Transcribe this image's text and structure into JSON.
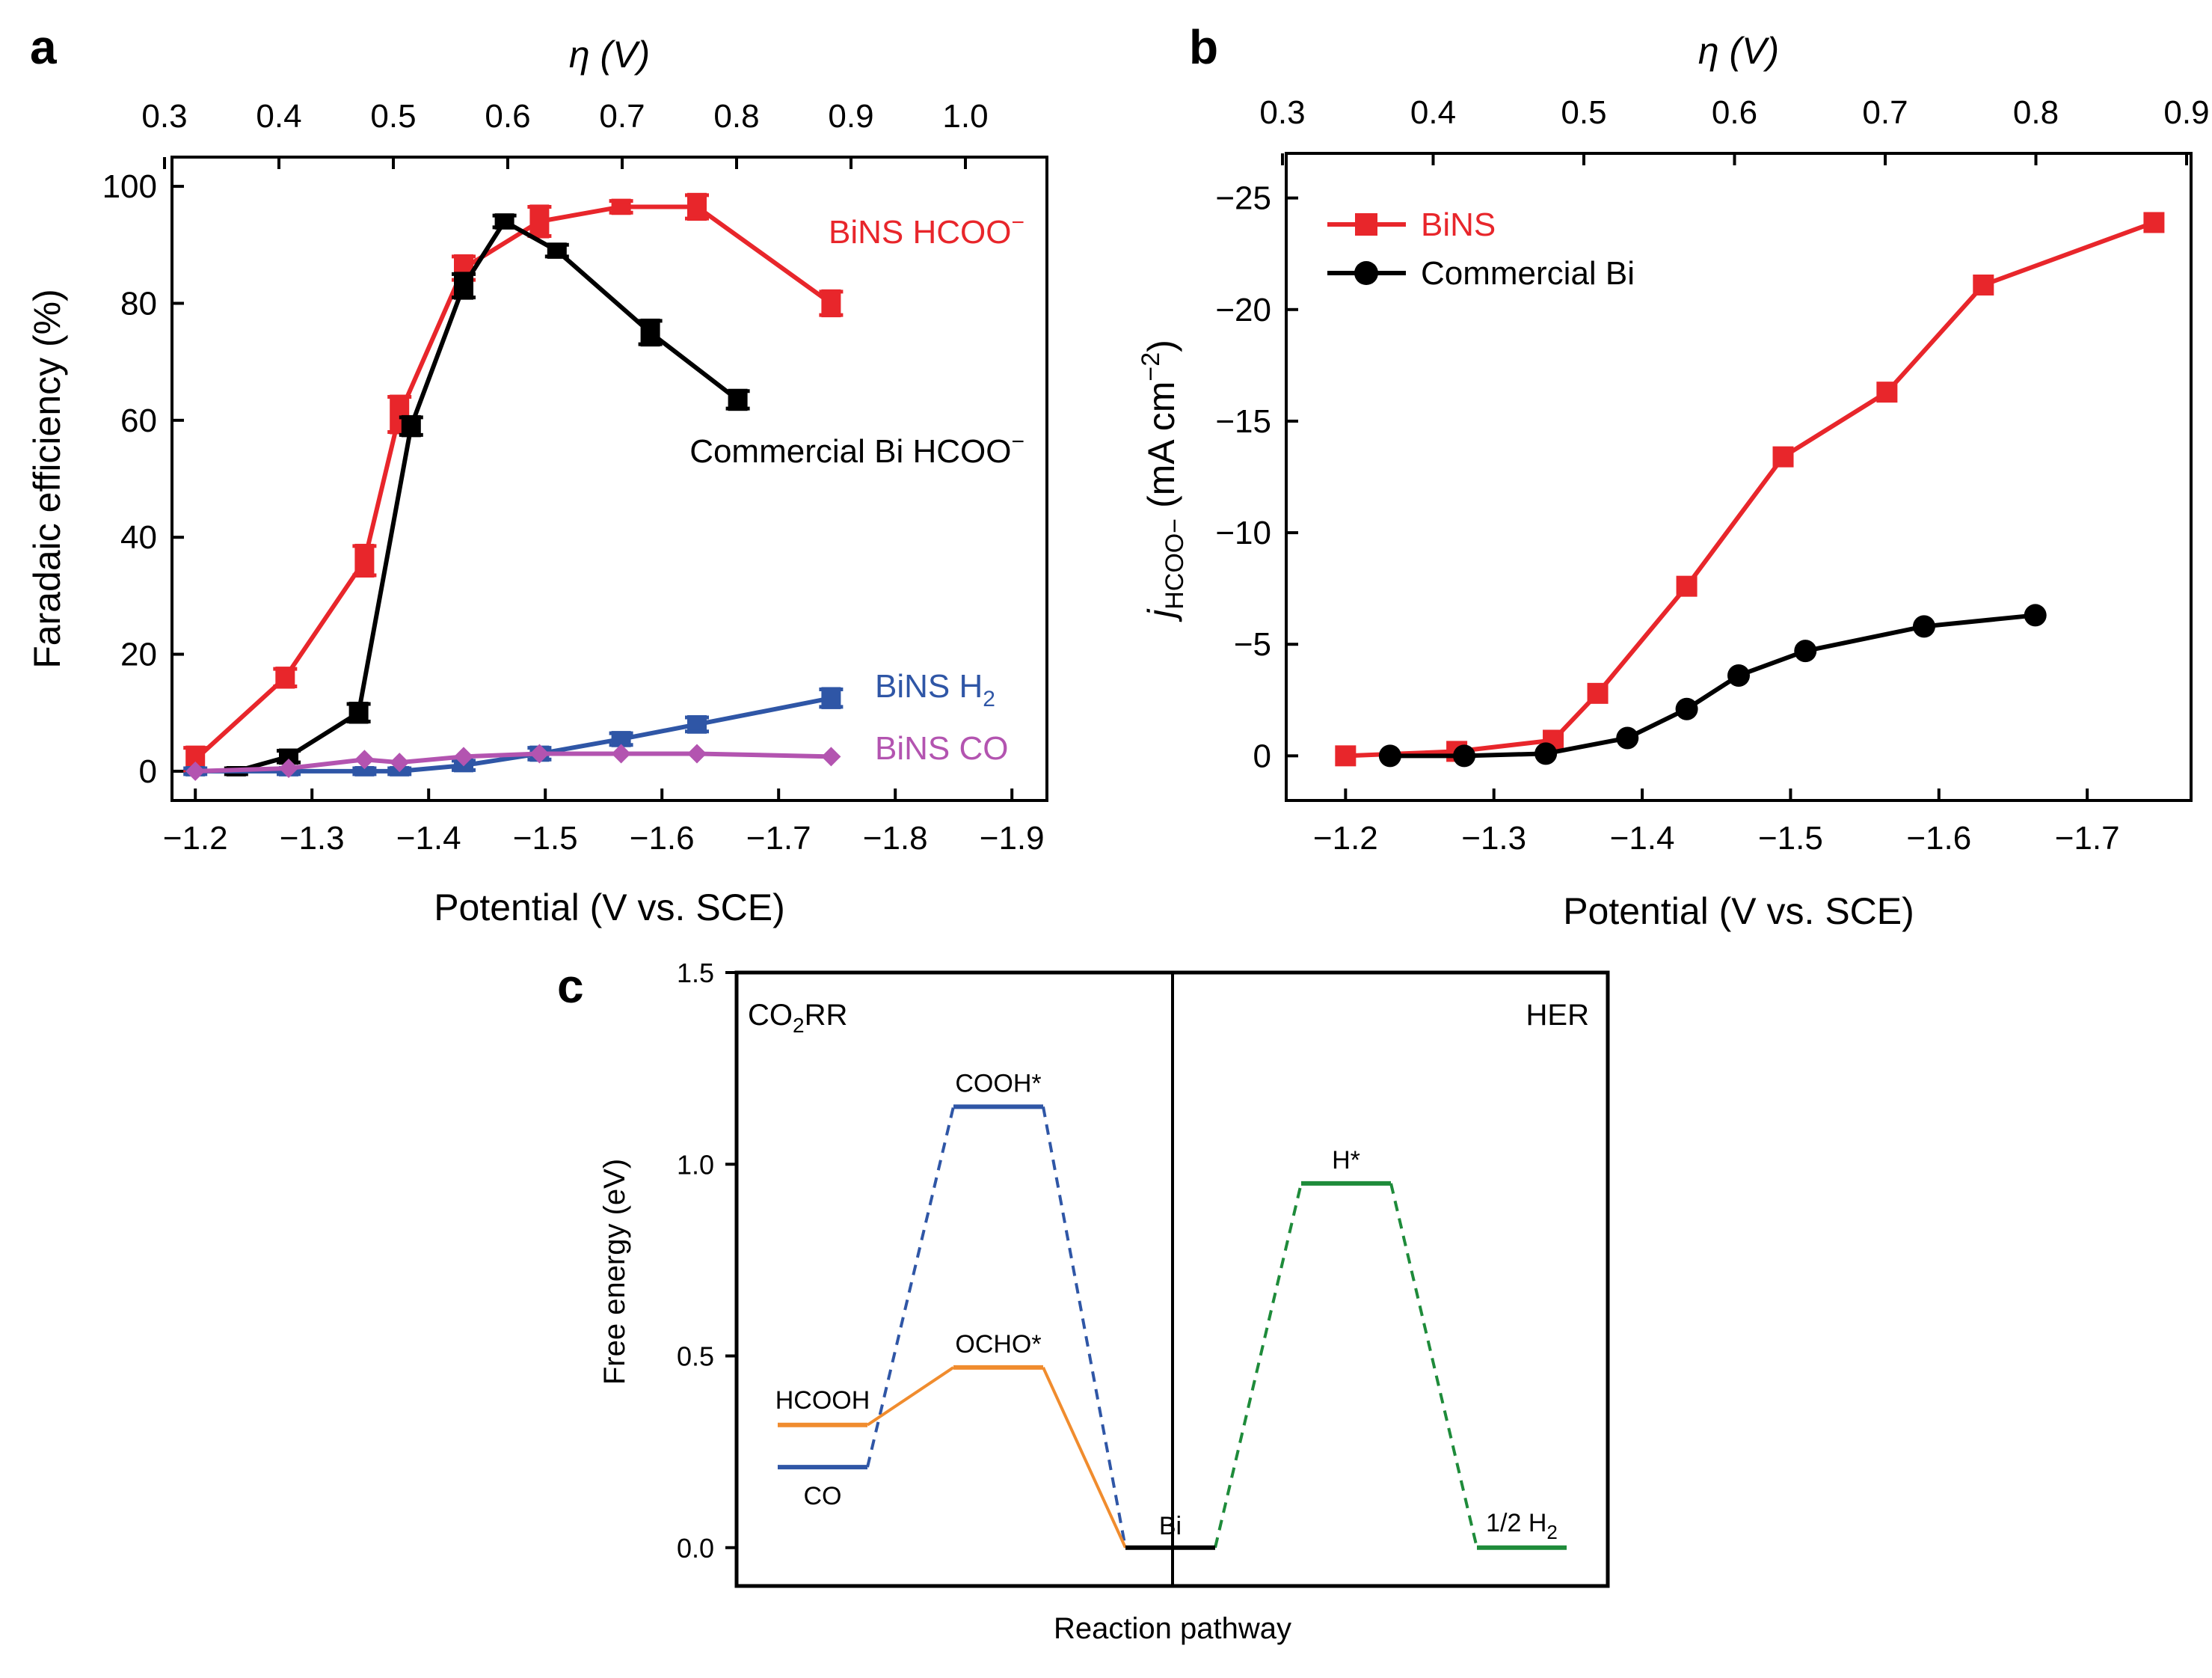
{
  "colors": {
    "red": "#e8262b",
    "black": "#000000",
    "blue": "#2f56a6",
    "magenta": "#b354b0",
    "orange": "#f08c2e",
    "green": "#1e8b3a"
  },
  "chart_data": [
    {
      "panel": "a",
      "type": "line",
      "title": "",
      "xlabel": "Potential (V vs. SCE)",
      "ylabel": "Faradaic efficiency (%)",
      "top_xlabel": "η (V)",
      "xlim": [
        -1.18,
        -1.93
      ],
      "ylim": [
        -5,
        105
      ],
      "xticks": [
        -1.2,
        -1.3,
        -1.4,
        -1.5,
        -1.6,
        -1.7,
        -1.8,
        -1.9
      ],
      "xtick_labels": [
        "−1.2",
        "−1.3",
        "−1.4",
        "−1.5",
        "−1.6",
        "−1.7",
        "−1.8",
        "−1.9"
      ],
      "yticks": [
        0,
        20,
        40,
        60,
        80,
        100
      ],
      "ytick_labels": [
        "0",
        "20",
        "40",
        "60",
        "80",
        "100"
      ],
      "top_xticks": [
        0.3,
        0.4,
        0.5,
        0.6,
        0.7,
        0.8,
        0.9,
        1.0
      ],
      "top_xtick_labels": [
        "0.3",
        "0.4",
        "0.5",
        "0.6",
        "0.7",
        "0.8",
        "0.9",
        "1.0"
      ],
      "series": [
        {
          "name": "BiNS HCOO−",
          "label": "BiNS HCOO",
          "label_sup": "−",
          "color": "red",
          "marker": "bar",
          "x": [
            -1.2,
            -1.277,
            -1.345,
            -1.375,
            -1.43,
            -1.495,
            -1.565,
            -1.63,
            -1.745
          ],
          "y": [
            2,
            16,
            36,
            61,
            86,
            94,
            96.5,
            96.5,
            80
          ],
          "err": [
            2,
            1.5,
            2.5,
            3,
            2,
            2.5,
            1,
            2,
            2
          ]
        },
        {
          "name": "Commercial Bi HCOO−",
          "label": "Commercial Bi HCOO",
          "label_sup": "−",
          "color": "black",
          "marker": "bar",
          "x": [
            -1.235,
            -1.28,
            -1.34,
            -1.385,
            -1.43,
            -1.465,
            -1.51,
            -1.59,
            -1.665
          ],
          "y": [
            0,
            2.5,
            10,
            59,
            83,
            94,
            89,
            75,
            63.5
          ],
          "err": [
            0.5,
            1,
            1.5,
            1.5,
            2,
            1,
            1,
            2,
            1.5
          ]
        },
        {
          "name": "BiNS H2",
          "label": "BiNS H",
          "label_sub": "2",
          "color": "blue",
          "marker": "bar",
          "x": [
            -1.2,
            -1.28,
            -1.345,
            -1.375,
            -1.43,
            -1.495,
            -1.565,
            -1.63,
            -1.745
          ],
          "y": [
            0,
            0,
            0,
            0,
            1,
            3,
            5.5,
            8,
            12.5
          ],
          "err": [
            0.5,
            0.5,
            0.5,
            0.5,
            0.8,
            1,
            1,
            1.2,
            1.5
          ]
        },
        {
          "name": "BiNS CO",
          "label": "BiNS CO",
          "color": "magenta",
          "marker": "diamond",
          "x": [
            -1.2,
            -1.28,
            -1.345,
            -1.375,
            -1.43,
            -1.495,
            -1.565,
            -1.63,
            -1.745
          ],
          "y": [
            0,
            0.5,
            2,
            1.5,
            2.5,
            3,
            3,
            3,
            2.5
          ],
          "err": [
            0,
            0,
            0,
            0,
            0,
            0,
            0,
            0,
            0
          ]
        }
      ]
    },
    {
      "panel": "b",
      "type": "line",
      "title": "",
      "xlabel": "Potential (V vs. SCE)",
      "ylabel": "j HCOO− (mA cm−2)",
      "ylabel_parts": {
        "j": "j",
        "sub": "HCOO−",
        "unit": " (mA cm",
        "sup": "−2",
        "close": ")"
      },
      "top_xlabel": "η (V)",
      "xlim": [
        -1.16,
        -1.77
      ],
      "ylim": [
        2,
        -27
      ],
      "xticks": [
        -1.2,
        -1.3,
        -1.4,
        -1.5,
        -1.6,
        -1.7
      ],
      "xtick_labels": [
        "−1.2",
        "−1.3",
        "−1.4",
        "−1.5",
        "−1.6",
        "−1.7"
      ],
      "yticks": [
        0,
        -5,
        -10,
        -15,
        -20,
        -25
      ],
      "ytick_labels": [
        "0",
        "−5",
        "−10",
        "−15",
        "−20",
        "−25"
      ],
      "top_xticks": [
        0.3,
        0.4,
        0.5,
        0.6,
        0.7,
        0.8,
        0.9
      ],
      "top_xtick_labels": [
        "0.3",
        "0.4",
        "0.5",
        "0.6",
        "0.7",
        "0.8",
        "0.9"
      ],
      "legend": "top-left",
      "series": [
        {
          "name": "BiNS",
          "color": "red",
          "marker": "square",
          "x": [
            -1.2,
            -1.275,
            -1.34,
            -1.37,
            -1.43,
            -1.495,
            -1.565,
            -1.63,
            -1.745
          ],
          "y": [
            0,
            -0.2,
            -0.7,
            -2.8,
            -7.6,
            -13.4,
            -16.3,
            -21.1,
            -23.9
          ]
        },
        {
          "name": "Commercial Bi",
          "color": "black",
          "marker": "circle",
          "x": [
            -1.23,
            -1.28,
            -1.335,
            -1.39,
            -1.43,
            -1.465,
            -1.51,
            -1.59,
            -1.665
          ],
          "y": [
            0,
            0,
            -0.1,
            -0.8,
            -2.1,
            -3.6,
            -4.7,
            -5.8,
            -6.3
          ]
        }
      ]
    },
    {
      "panel": "c",
      "type": "line",
      "title": "",
      "xlabel": "Reaction pathway",
      "ylabel": "Free energy (eV)",
      "ylim": [
        -0.1,
        1.5
      ],
      "yticks": [
        0.0,
        0.5,
        1.0,
        1.5
      ],
      "ytick_labels": [
        "0.0",
        "0.5",
        "1.0",
        "1.5"
      ],
      "section_labels": {
        "left": "CO",
        "left_sub": "2",
        "left_tail": "RR",
        "right": "HER"
      },
      "levels": [
        {
          "name": "HCOOH",
          "label": "HCOOH",
          "energy": 0.32,
          "color": "orange"
        },
        {
          "name": "CO",
          "label": "CO",
          "energy": 0.21,
          "color": "blue"
        },
        {
          "name": "COOH*",
          "label": "COOH*",
          "energy": 1.15,
          "color": "blue"
        },
        {
          "name": "OCHO*",
          "label": "OCHO*",
          "energy": 0.47,
          "color": "orange"
        },
        {
          "name": "Bi",
          "label": "Bi",
          "energy": 0.0,
          "color": "black"
        },
        {
          "name": "H*",
          "label": "H*",
          "energy": 0.95,
          "color": "green"
        },
        {
          "name": "1/2 H2",
          "label": "1/2 H",
          "label_sub": "2",
          "energy": 0.0,
          "color": "green"
        }
      ]
    }
  ],
  "panel_labels": {
    "a": "a",
    "b": "b",
    "c": "c"
  }
}
